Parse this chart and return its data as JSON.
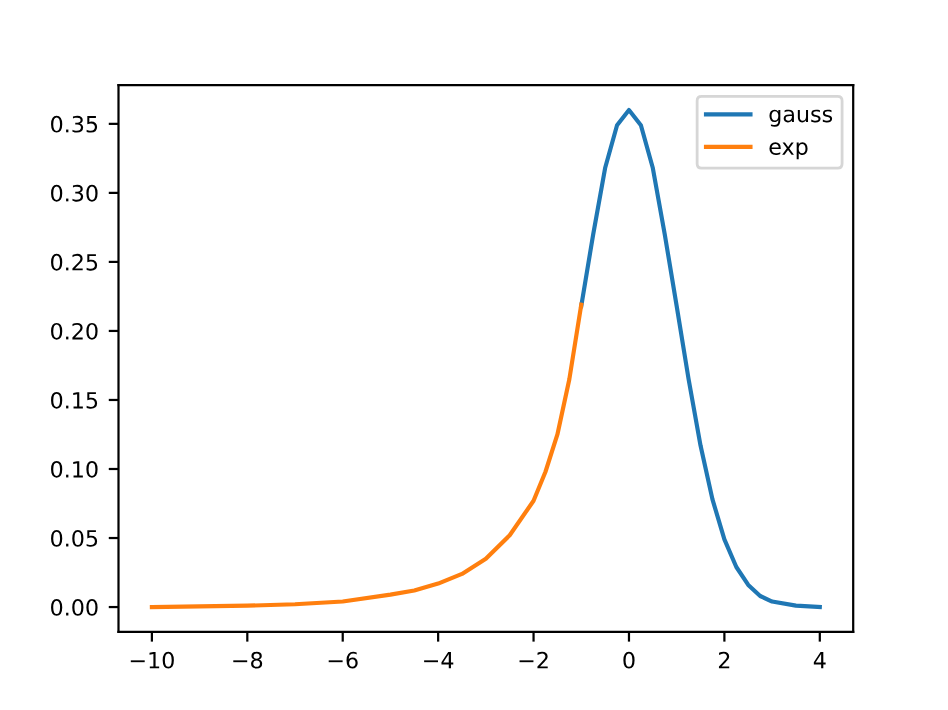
{
  "chart_data": {
    "type": "line",
    "series": [
      {
        "name": "gauss",
        "color": "#1f77b4",
        "x": [
          -1,
          -0.75,
          -0.5,
          -0.25,
          0,
          0.25,
          0.5,
          0.75,
          1,
          1.25,
          1.5,
          1.75,
          2,
          2.25,
          2.5,
          2.75,
          3,
          3.5,
          4
        ],
        "values": [
          0.218,
          0.27,
          0.318,
          0.349,
          0.36,
          0.349,
          0.318,
          0.27,
          0.218,
          0.165,
          0.117,
          0.078,
          0.049,
          0.029,
          0.016,
          0.008,
          0.004,
          0.001,
          0.0
        ]
      },
      {
        "name": "exp",
        "color": "#ff7f0e",
        "x": [
          -10,
          -9,
          -8,
          -7,
          -6,
          -5,
          -4.5,
          -4,
          -3.5,
          -3,
          -2.5,
          -2,
          -1.75,
          -1.5,
          -1.25,
          -1
        ],
        "values": [
          0.0,
          0.0005,
          0.001,
          0.002,
          0.004,
          0.009,
          0.012,
          0.017,
          0.024,
          0.035,
          0.052,
          0.077,
          0.098,
          0.125,
          0.165,
          0.219
        ]
      }
    ],
    "xlim": [
      -10.7,
      4.7
    ],
    "ylim": [
      -0.018,
      0.378
    ],
    "xticks": [
      {
        "value": -10,
        "label": "−10"
      },
      {
        "value": -8,
        "label": "−8"
      },
      {
        "value": -6,
        "label": "−6"
      },
      {
        "value": -4,
        "label": "−4"
      },
      {
        "value": -2,
        "label": "−2"
      },
      0,
      2,
      4
    ],
    "yticks": [
      {
        "value": 0,
        "label": "0.00"
      },
      {
        "value": 0.05,
        "label": "0.05"
      },
      {
        "value": 0.1,
        "label": "0.10"
      },
      {
        "value": 0.15,
        "label": "0.15"
      },
      {
        "value": 0.2,
        "label": "0.20"
      },
      {
        "value": 0.25,
        "label": "0.25"
      },
      {
        "value": 0.3,
        "label": "0.30"
      },
      {
        "value": 0.35,
        "label": "0.35"
      }
    ],
    "legend": "top right",
    "grid": false
  }
}
